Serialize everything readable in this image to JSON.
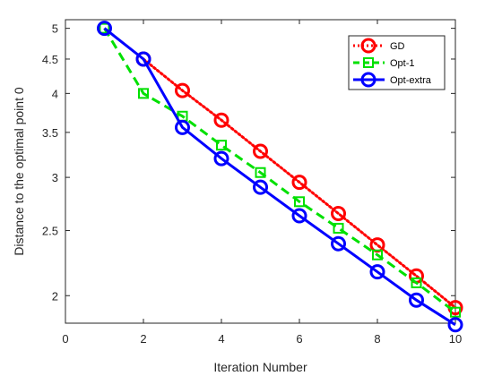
{
  "chart_data": {
    "type": "line",
    "xlabel": "Iteration Number",
    "ylabel": "Distance to the optimal point 0",
    "xlim": [
      0,
      10
    ],
    "ylim": [
      1.82,
      5.15
    ],
    "yscale": "log",
    "grid": false,
    "legend_position": "top-right",
    "x_ticks": [
      0,
      2,
      4,
      6,
      8,
      10
    ],
    "y_ticks": [
      2,
      2.5,
      3,
      3.5,
      4,
      4.5,
      5
    ],
    "x": [
      1,
      2,
      3,
      4,
      5,
      6,
      7,
      8,
      9,
      10
    ],
    "series": [
      {
        "name": "GD",
        "color": "#ff0000",
        "line_style": "dotted",
        "marker": "circle",
        "x": [
          2,
          3,
          4,
          5,
          6,
          7,
          8,
          9,
          10
        ],
        "values": [
          4.5,
          4.04,
          3.65,
          3.28,
          2.95,
          2.65,
          2.38,
          2.14,
          1.92
        ]
      },
      {
        "name": "Opt-1",
        "color": "#00e000",
        "line_style": "dashed",
        "marker": "square",
        "x": [
          1,
          2,
          3,
          4,
          5,
          6,
          7,
          8,
          9,
          10
        ],
        "values": [
          5.0,
          4.0,
          3.7,
          3.35,
          3.05,
          2.76,
          2.52,
          2.3,
          2.09,
          1.89
        ]
      },
      {
        "name": "Opt-extra",
        "color": "#0000ff",
        "line_style": "solid",
        "marker": "circle",
        "x": [
          1,
          2,
          3,
          4,
          5,
          6,
          7,
          8,
          9,
          10
        ],
        "values": [
          5.0,
          4.5,
          3.56,
          3.2,
          2.9,
          2.63,
          2.39,
          2.17,
          1.97,
          1.81
        ]
      }
    ]
  }
}
